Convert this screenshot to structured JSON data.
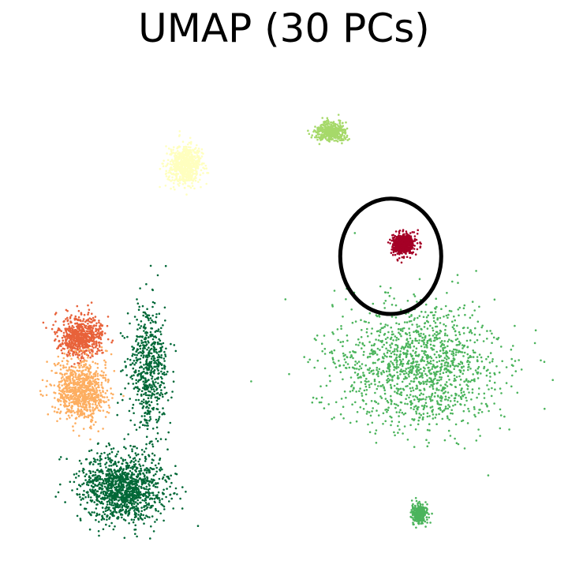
{
  "chart_data": {
    "type": "scatter",
    "title": "UMAP (30 PCs)",
    "xlabel": "",
    "ylabel": "",
    "axes_visible": false,
    "grid": false,
    "legend": "none",
    "xlim": [
      0,
      100
    ],
    "ylim": [
      0,
      100
    ],
    "series": [
      {
        "name": "cluster-large-green",
        "color": "#4bb45c",
        "center": [
          76,
          38
        ],
        "spread": [
          16,
          13
        ],
        "relative_density": 1.0
      },
      {
        "name": "cluster-dark-green-lower",
        "color": "#006837",
        "center": [
          19,
          13
        ],
        "spread": [
          8,
          7
        ],
        "relative_density": 0.9
      },
      {
        "name": "cluster-dark-green-branch",
        "color": "#006837",
        "center": [
          24,
          38
        ],
        "spread": [
          4,
          12
        ],
        "relative_density": 0.4
      },
      {
        "name": "cluster-orange-red",
        "color": "#e8623a",
        "center": [
          11,
          44
        ],
        "spread": [
          4,
          4
        ],
        "relative_density": 0.5
      },
      {
        "name": "cluster-light-orange",
        "color": "#fdae61",
        "center": [
          11,
          33
        ],
        "spread": [
          5,
          6
        ],
        "relative_density": 0.6
      },
      {
        "name": "cluster-pale-yellow",
        "color": "#ffffbf",
        "center": [
          31,
          79
        ],
        "spread": [
          3,
          4
        ],
        "relative_density": 0.5
      },
      {
        "name": "cluster-light-lime",
        "color": "#a6d96a",
        "center": [
          59,
          86
        ],
        "spread": [
          3,
          2
        ],
        "relative_density": 0.3
      },
      {
        "name": "cluster-crimson",
        "color": "#a50026",
        "center": [
          73,
          63
        ],
        "spread": [
          2,
          2
        ],
        "relative_density": 0.5
      },
      {
        "name": "cluster-small-green-bottom",
        "color": "#4bb45c",
        "center": [
          76,
          8
        ],
        "spread": [
          1.5,
          2
        ],
        "relative_density": 0.2
      }
    ],
    "annotations": [
      {
        "type": "ellipse",
        "center": [
          70.5,
          60.5
        ],
        "radii": [
          9.7,
          11.8
        ],
        "color": "#000000"
      }
    ]
  }
}
